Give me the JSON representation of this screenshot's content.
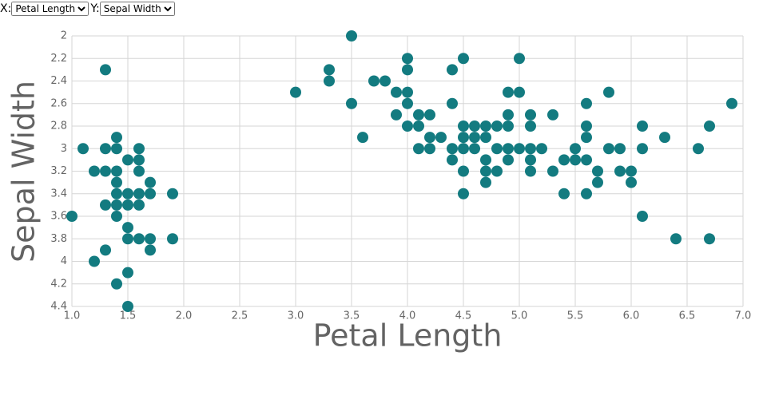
{
  "controls": {
    "x_label": "X:",
    "x_selected": "Petal Length",
    "y_label": "Y:",
    "y_selected": "Sepal Width"
  },
  "chart_data": {
    "type": "scatter",
    "xlabel": "Petal Length",
    "ylabel": "Sepal Width",
    "color": "#137b80",
    "grid": true,
    "xlim": [
      1,
      7
    ],
    "ylim": [
      4.4,
      2
    ],
    "xticks": [
      {
        "value": 1,
        "label": "1.0"
      },
      {
        "value": 1.5,
        "label": "1.5"
      },
      {
        "value": 2,
        "label": "2.0"
      },
      {
        "value": 2.5,
        "label": "2.5"
      },
      {
        "value": 3,
        "label": "3.0"
      },
      {
        "value": 3.5,
        "label": "3.5"
      },
      {
        "value": 4,
        "label": "4.0"
      },
      {
        "value": 4.5,
        "label": "4.5"
      },
      {
        "value": 5,
        "label": "5.0"
      },
      {
        "value": 5.5,
        "label": "5.5"
      },
      {
        "value": 6,
        "label": "6.0"
      },
      {
        "value": 6.5,
        "label": "6.5"
      },
      {
        "value": 7,
        "label": "7.0"
      }
    ],
    "yticks": [
      2,
      2.2,
      2.4,
      2.6,
      2.8,
      3,
      3.2,
      3.4,
      3.6,
      3.8,
      4,
      4.2,
      4.4
    ],
    "x": [
      1.0,
      1.1,
      1.2,
      1.2,
      1.3,
      1.3,
      1.3,
      1.3,
      1.3,
      1.4,
      1.4,
      1.4,
      1.4,
      1.4,
      1.4,
      1.4,
      1.4,
      1.5,
      1.5,
      1.5,
      1.5,
      1.5,
      1.5,
      1.5,
      1.6,
      1.6,
      1.6,
      1.6,
      1.6,
      1.6,
      1.7,
      1.7,
      1.7,
      1.7,
      1.9,
      1.9,
      3.0,
      3.3,
      3.3,
      3.5,
      3.5,
      3.6,
      3.7,
      3.8,
      3.9,
      3.9,
      4.0,
      4.0,
      4.0,
      4.0,
      4.0,
      4.1,
      4.1,
      4.1,
      4.2,
      4.2,
      4.2,
      4.3,
      4.4,
      4.4,
      4.4,
      4.4,
      4.5,
      4.5,
      4.5,
      4.5,
      4.5,
      4.5,
      4.6,
      4.6,
      4.6,
      4.7,
      4.7,
      4.7,
      4.7,
      4.7,
      4.8,
      4.8,
      4.8,
      4.9,
      4.9,
      4.9,
      4.9,
      4.9,
      5.0,
      5.0,
      5.0,
      5.1,
      5.1,
      5.1,
      5.1,
      5.1,
      5.2,
      5.3,
      5.3,
      5.4,
      5.4,
      5.5,
      5.5,
      5.6,
      5.6,
      5.6,
      5.6,
      5.6,
      5.7,
      5.7,
      5.8,
      5.8,
      5.9,
      5.9,
      6.0,
      6.0,
      6.1,
      6.1,
      6.1,
      6.3,
      6.4,
      6.6,
      6.7,
      6.7,
      6.9
    ],
    "values": [
      3.6,
      3.0,
      3.2,
      4.0,
      2.3,
      3.0,
      3.2,
      3.5,
      3.9,
      2.9,
      3.0,
      3.2,
      3.3,
      3.4,
      3.5,
      3.6,
      4.2,
      3.1,
      3.4,
      3.5,
      3.7,
      3.8,
      4.1,
      4.4,
      3.0,
      3.1,
      3.2,
      3.4,
      3.5,
      3.8,
      3.3,
      3.4,
      3.8,
      3.9,
      3.4,
      3.8,
      2.5,
      2.3,
      2.4,
      2.0,
      2.6,
      2.9,
      2.4,
      2.4,
      2.5,
      2.7,
      2.2,
      2.3,
      2.5,
      2.6,
      2.8,
      2.7,
      2.8,
      3.0,
      2.7,
      2.9,
      3.0,
      2.9,
      2.3,
      2.6,
      3.0,
      3.1,
      2.2,
      2.8,
      2.9,
      3.0,
      3.2,
      3.4,
      2.8,
      2.9,
      3.0,
      2.8,
      2.9,
      3.1,
      3.2,
      3.3,
      2.8,
      3.0,
      3.2,
      2.5,
      2.7,
      2.8,
      3.0,
      3.1,
      2.2,
      2.5,
      3.0,
      2.7,
      2.8,
      3.0,
      3.1,
      3.2,
      3.0,
      2.7,
      3.2,
      3.1,
      3.4,
      3.0,
      3.1,
      2.6,
      2.8,
      2.9,
      3.1,
      3.4,
      3.2,
      3.3,
      2.5,
      3.0,
      3.0,
      3.2,
      3.2,
      3.3,
      2.8,
      3.0,
      3.6,
      2.9,
      3.8,
      3.0,
      2.8,
      3.8,
      2.6
    ]
  }
}
